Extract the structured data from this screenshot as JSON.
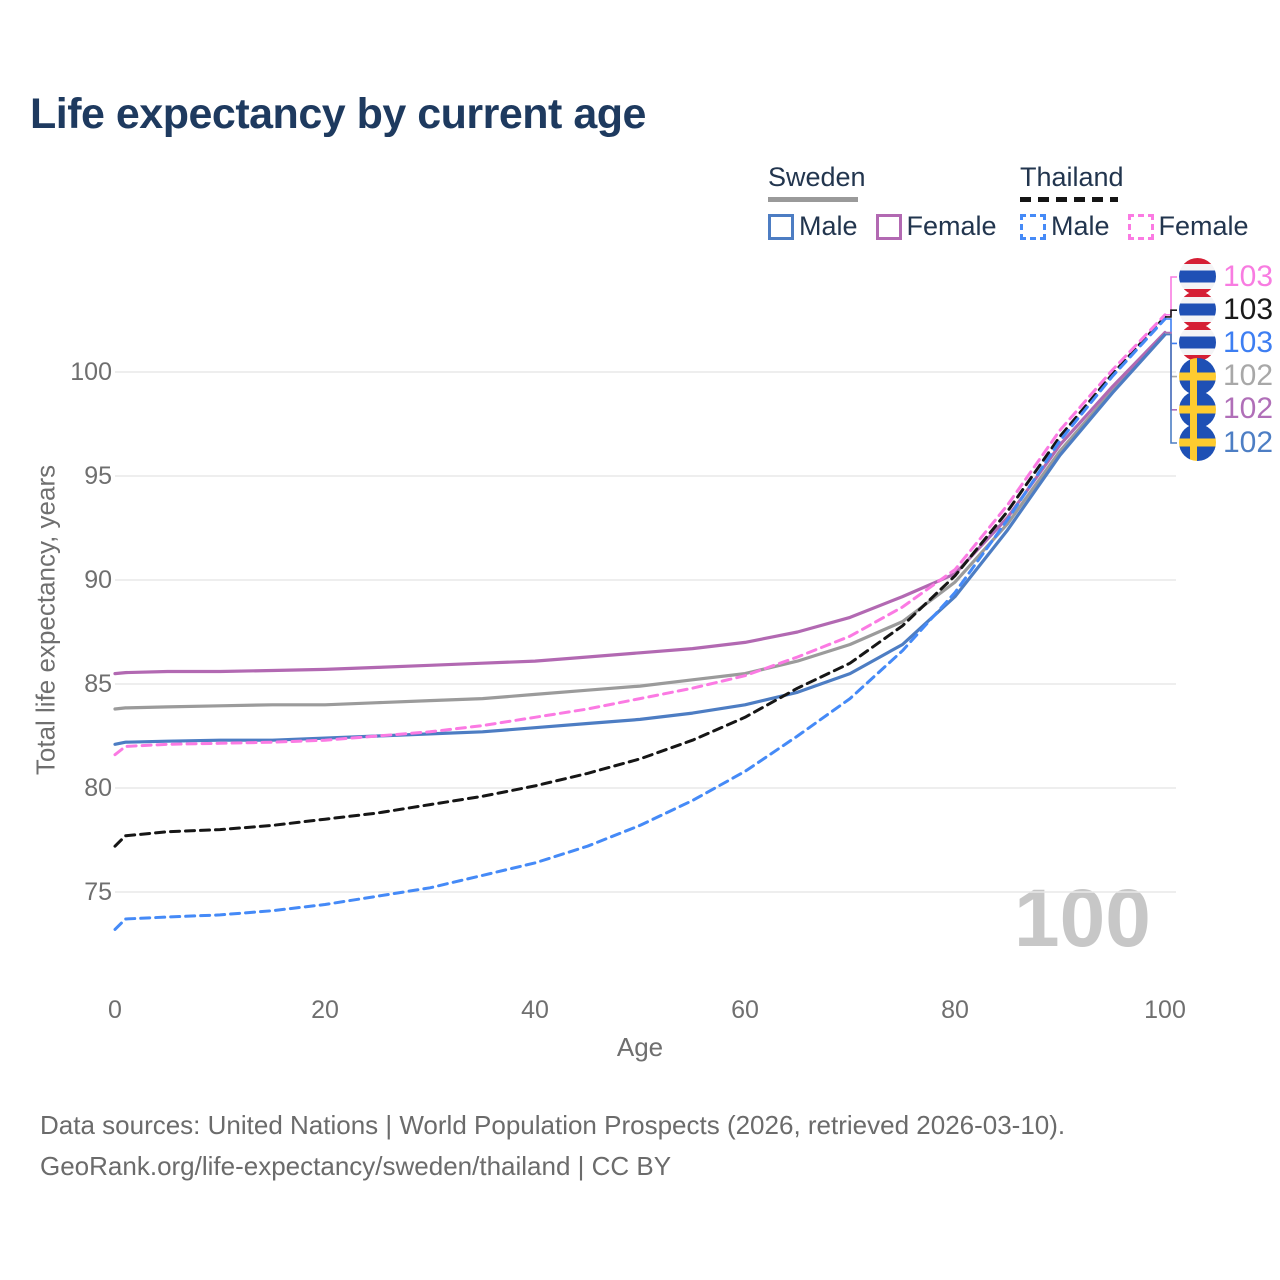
{
  "title": "Life expectancy by current age",
  "watermark": "100",
  "legend": {
    "groups": [
      {
        "label": "Sweden",
        "line_style": "solid",
        "underline_color": "#9a9a9a",
        "items": [
          {
            "label": "Male",
            "color": "#4d7dc3"
          },
          {
            "label": "Female",
            "color": "#b269b2"
          }
        ]
      },
      {
        "label": "Thailand",
        "line_style": "dashed",
        "underline_color": "#151515",
        "items": [
          {
            "label": "Male",
            "color": "#458af7"
          },
          {
            "label": "Female",
            "color": "#fb7ae3"
          }
        ]
      }
    ]
  },
  "chart_data": {
    "type": "line",
    "title": "Life expectancy by current age",
    "xlabel": "Age",
    "ylabel": "Total life expectancy, years",
    "x_ticks": [
      0,
      20,
      40,
      60,
      80,
      100
    ],
    "y_ticks": [
      100,
      95,
      90,
      85,
      80,
      75
    ],
    "xlim": [
      0,
      100
    ],
    "ylim": [
      72,
      104
    ],
    "grid": "horizontal-only",
    "legend_position": "top-right",
    "ages": [
      0,
      1,
      5,
      10,
      15,
      20,
      25,
      30,
      35,
      40,
      45,
      50,
      55,
      60,
      65,
      70,
      75,
      80,
      85,
      90,
      95,
      100
    ],
    "series": [
      {
        "id": "sweden_total",
        "name": "Sweden (both sexes)",
        "country": "Sweden",
        "sex": "all",
        "color": "#9b9b9b",
        "dash": false,
        "values": [
          83.8,
          83.85,
          83.9,
          83.95,
          84.0,
          84.0,
          84.1,
          84.2,
          84.3,
          84.5,
          84.7,
          84.9,
          85.2,
          85.5,
          86.1,
          86.9,
          88.0,
          89.9,
          92.7,
          96.2,
          99.1,
          101.85
        ]
      },
      {
        "id": "sweden_female",
        "name": "Sweden Female",
        "country": "Sweden",
        "sex": "female",
        "color": "#b269b2",
        "dash": false,
        "values": [
          85.5,
          85.55,
          85.6,
          85.6,
          85.65,
          85.7,
          85.8,
          85.9,
          86.0,
          86.1,
          86.3,
          86.5,
          86.7,
          87.0,
          87.5,
          88.2,
          89.2,
          90.3,
          93.0,
          96.5,
          99.3,
          101.9
        ]
      },
      {
        "id": "sweden_male",
        "name": "Sweden Male",
        "country": "Sweden",
        "sex": "male",
        "color": "#4d7dc3",
        "dash": false,
        "values": [
          82.1,
          82.2,
          82.25,
          82.3,
          82.3,
          82.4,
          82.5,
          82.6,
          82.7,
          82.9,
          83.1,
          83.3,
          83.6,
          84.0,
          84.6,
          85.5,
          86.9,
          89.2,
          92.4,
          96.0,
          99.0,
          101.8
        ]
      },
      {
        "id": "thailand_total",
        "name": "Thailand (both sexes)",
        "country": "Thailand",
        "sex": "all",
        "color": "#161616",
        "dash": true,
        "values": [
          77.2,
          77.7,
          77.9,
          78.0,
          78.2,
          78.5,
          78.8,
          79.2,
          79.6,
          80.1,
          80.7,
          81.4,
          82.3,
          83.4,
          84.8,
          86.0,
          87.8,
          90.2,
          93.3,
          96.9,
          99.9,
          102.65
        ]
      },
      {
        "id": "thailand_male",
        "name": "Thailand Male",
        "country": "Thailand",
        "sex": "male",
        "color": "#458af7",
        "dash": true,
        "values": [
          73.2,
          73.7,
          73.8,
          73.9,
          74.1,
          74.4,
          74.8,
          75.2,
          75.8,
          76.4,
          77.2,
          78.2,
          79.4,
          80.8,
          82.5,
          84.3,
          86.6,
          89.4,
          92.9,
          96.7,
          99.8,
          102.55
        ]
      },
      {
        "id": "thailand_female",
        "name": "Thailand Female",
        "country": "Thailand",
        "sex": "female",
        "color": "#fb7ae3",
        "dash": true,
        "values": [
          81.6,
          82.0,
          82.1,
          82.15,
          82.2,
          82.3,
          82.5,
          82.7,
          83.0,
          83.4,
          83.8,
          84.3,
          84.8,
          85.4,
          86.3,
          87.3,
          88.7,
          90.5,
          93.6,
          97.2,
          100.1,
          102.75
        ]
      }
    ]
  },
  "end_labels": [
    {
      "series": "thailand_female",
      "flag": "thailand",
      "value": "103",
      "color": "#f87ce1"
    },
    {
      "series": "thailand_total",
      "flag": "thailand",
      "value": "103",
      "color": "#1a1a1a"
    },
    {
      "series": "thailand_male",
      "flag": "thailand",
      "value": "103",
      "color": "#3d7ef2"
    },
    {
      "series": "sweden_total",
      "flag": "sweden",
      "value": "102",
      "color": "#a8a8a8"
    },
    {
      "series": "sweden_female",
      "flag": "sweden",
      "value": "102",
      "color": "#b06fb8"
    },
    {
      "series": "sweden_male",
      "flag": "sweden",
      "value": "102",
      "color": "#4d7ec4"
    }
  ],
  "footer": {
    "line1": "Data sources: United Nations | World Population Prospects (2026, retrieved 2026-03-10).",
    "line2": "GeoRank.org/life-expectancy/sweden/thailand | CC BY"
  }
}
